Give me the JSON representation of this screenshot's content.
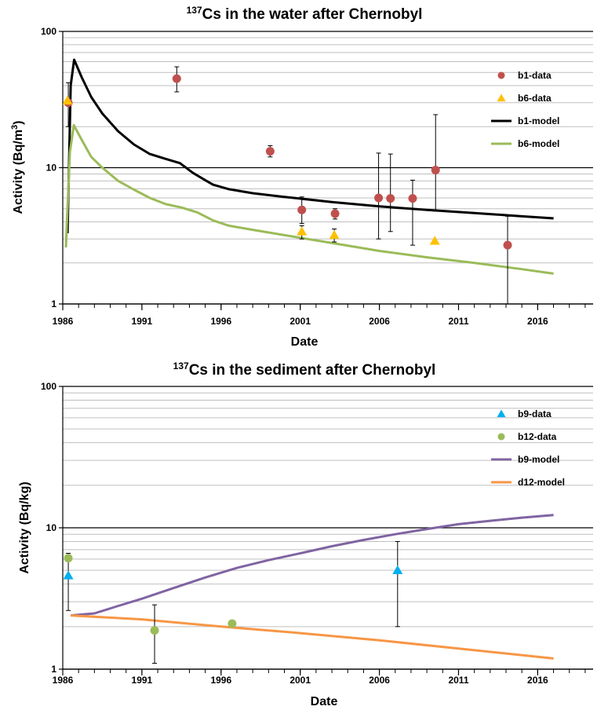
{
  "chart_data": [
    {
      "type": "scatter",
      "title_sup": "137",
      "title_main": "Cs in the water after Chernobyl",
      "xlabel": "Date",
      "ylabel_main": "Activity (Bq/m",
      "ylabel_sup": "3",
      "ylabel_end": ")",
      "y_scale": "log",
      "xlim": [
        1986,
        2019.5
      ],
      "ylim": [
        1,
        100
      ],
      "x_ticks": [
        1986,
        1991,
        1996,
        2001,
        2006,
        2011,
        2016
      ],
      "x_tick_labels": [
        "1986",
        "1991",
        "1996",
        "2001",
        "2006",
        "2011",
        "2016"
      ],
      "y_ticks": [
        1,
        10,
        100
      ],
      "y_tick_labels": [
        "1",
        "10",
        "100"
      ],
      "grid": "horizontal log minor",
      "legend_position": "right",
      "legend": [
        {
          "name": "b1-data",
          "kind": "circle",
          "color": "#C0504D"
        },
        {
          "name": "b6-data",
          "kind": "triangle",
          "color": "#FFC000"
        },
        {
          "name": "b1-model",
          "kind": "line",
          "color": "#000000"
        },
        {
          "name": "b6-model",
          "kind": "line",
          "color": "#9BBB59"
        }
      ],
      "series": [
        {
          "name": "b1-data",
          "kind": "circle",
          "color": "#C0504D",
          "points": [
            {
              "x": 1986.35,
              "y": 30,
              "lo": 20,
              "hi": 42
            },
            {
              "x": 1993.2,
              "y": 45,
              "lo": 36,
              "hi": 55
            },
            {
              "x": 1999.1,
              "y": 13.2,
              "lo": 12,
              "hi": 14.5
            },
            {
              "x": 2001.1,
              "y": 4.9,
              "lo": 3.9,
              "hi": 6.1
            },
            {
              "x": 2003.2,
              "y": 4.6,
              "lo": 4.2,
              "hi": 5.0
            },
            {
              "x": 2005.95,
              "y": 6.0,
              "lo": 3.0,
              "hi": 12.8
            },
            {
              "x": 2006.7,
              "y": 5.95,
              "lo": 3.4,
              "hi": 12.6
            },
            {
              "x": 2008.1,
              "y": 5.95,
              "lo": 2.7,
              "hi": 8.1
            },
            {
              "x": 2009.55,
              "y": 9.6,
              "lo": 4.8,
              "hi": 24.5
            },
            {
              "x": 2014.1,
              "y": 2.7,
              "lo": 1.0,
              "hi": 4.4
            }
          ]
        },
        {
          "name": "b6-data",
          "kind": "triangle",
          "color": "#FFC000",
          "points": [
            {
              "x": 1986.3,
              "y": 31
            },
            {
              "x": 2001.1,
              "y": 3.4,
              "lo": 3.0,
              "hi": 3.75
            },
            {
              "x": 2003.15,
              "y": 3.2,
              "lo": 2.85,
              "hi": 3.55
            },
            {
              "x": 2009.5,
              "y": 2.9
            }
          ]
        },
        {
          "name": "b1-model",
          "kind": "line",
          "color": "#000000",
          "points": [
            [
              1986.3,
              3.3
            ],
            [
              1986.5,
              40
            ],
            [
              1986.72,
              62
            ],
            [
              1987.2,
              46
            ],
            [
              1987.8,
              33
            ],
            [
              1988.5,
              25
            ],
            [
              1989.5,
              18.5
            ],
            [
              1990.5,
              14.8
            ],
            [
              1991.5,
              12.6
            ],
            [
              1992.5,
              11.6
            ],
            [
              1993.4,
              10.8
            ],
            [
              1994.2,
              9.2
            ],
            [
              1995.0,
              8.1
            ],
            [
              1995.5,
              7.5
            ],
            [
              1996.5,
              6.95
            ],
            [
              1998,
              6.5
            ],
            [
              2000,
              6.1
            ],
            [
              2003,
              5.6
            ],
            [
              2006,
              5.2
            ],
            [
              2009,
              4.9
            ],
            [
              2012,
              4.65
            ],
            [
              2015,
              4.4
            ],
            [
              2017,
              4.25
            ]
          ]
        },
        {
          "name": "b6-model",
          "kind": "line",
          "color": "#9BBB59",
          "points": [
            [
              1986.2,
              2.6
            ],
            [
              1986.45,
              13
            ],
            [
              1986.7,
              20.5
            ],
            [
              1987.2,
              16
            ],
            [
              1987.8,
              12
            ],
            [
              1988.5,
              10
            ],
            [
              1989.5,
              8
            ],
            [
              1990.5,
              6.9
            ],
            [
              1991.5,
              6.0
            ],
            [
              1992.5,
              5.4
            ],
            [
              1993.5,
              5.1
            ],
            [
              1994.5,
              4.7
            ],
            [
              1995.5,
              4.1
            ],
            [
              1996.5,
              3.75
            ],
            [
              1998,
              3.5
            ],
            [
              2000,
              3.2
            ],
            [
              2003,
              2.8
            ],
            [
              2006,
              2.45
            ],
            [
              2009,
              2.2
            ],
            [
              2012,
              2.0
            ],
            [
              2015,
              1.8
            ],
            [
              2017,
              1.67
            ]
          ]
        }
      ]
    },
    {
      "type": "scatter",
      "title_sup": "137",
      "title_main": "Cs in the sediment after Chernobyl",
      "xlabel": "Date",
      "ylabel_main": "Activity (Bq/kg)",
      "ylabel_sup": "",
      "ylabel_end": "",
      "y_scale": "log",
      "xlim": [
        1986,
        2019.5
      ],
      "ylim": [
        1,
        100
      ],
      "x_ticks": [
        1986,
        1991,
        1996,
        2001,
        2006,
        2011,
        2016
      ],
      "x_tick_labels": [
        "1986",
        "1991",
        "1996",
        "2001",
        "2006",
        "2011",
        "2016"
      ],
      "y_ticks": [
        1,
        10,
        100
      ],
      "y_tick_labels": [
        "1",
        "10",
        "100"
      ],
      "grid": "horizontal log minor",
      "legend_position": "right",
      "legend": [
        {
          "name": "b9-data",
          "kind": "triangle",
          "color": "#00B0F0"
        },
        {
          "name": "b12-data",
          "kind": "circle",
          "color": "#9BBB59"
        },
        {
          "name": "b9-model",
          "kind": "line",
          "color": "#8064A2"
        },
        {
          "name": "d12-model",
          "kind": "line",
          "color": "#F79646"
        }
      ],
      "series": [
        {
          "name": "b9-data",
          "kind": "triangle",
          "color": "#00B0F0",
          "points": [
            {
              "x": 1986.35,
              "y": 4.6,
              "lo": 2.6,
              "hi": 6.6
            },
            {
              "x": 2007.15,
              "y": 5.0,
              "lo": 2.0,
              "hi": 8.0
            }
          ]
        },
        {
          "name": "b12-data",
          "kind": "circle",
          "color": "#9BBB59",
          "points": [
            {
              "x": 1986.35,
              "y": 6.1
            },
            {
              "x": 1991.8,
              "y": 1.88,
              "lo": 1.1,
              "hi": 2.85
            },
            {
              "x": 1996.7,
              "y": 2.1
            }
          ]
        },
        {
          "name": "b9-model",
          "kind": "line",
          "color": "#8064A2",
          "points": [
            [
              1986.5,
              2.4
            ],
            [
              1988,
              2.48
            ],
            [
              1989.5,
              2.8
            ],
            [
              1991,
              3.15
            ],
            [
              1993,
              3.75
            ],
            [
              1995,
              4.45
            ],
            [
              1997,
              5.2
            ],
            [
              1999,
              5.9
            ],
            [
              2001,
              6.6
            ],
            [
              2003,
              7.4
            ],
            [
              2005,
              8.2
            ],
            [
              2007,
              9.0
            ],
            [
              2009,
              9.8
            ],
            [
              2011,
              10.6
            ],
            [
              2013,
              11.2
            ],
            [
              2015,
              11.8
            ],
            [
              2017,
              12.3
            ]
          ]
        },
        {
          "name": "d12-model",
          "kind": "line",
          "color": "#F79646",
          "points": [
            [
              1986.5,
              2.4
            ],
            [
              1991,
              2.25
            ],
            [
              1996,
              2.0
            ],
            [
              2001,
              1.8
            ],
            [
              2006,
              1.6
            ],
            [
              2011,
              1.4
            ],
            [
              2017,
              1.19
            ]
          ]
        }
      ]
    }
  ]
}
